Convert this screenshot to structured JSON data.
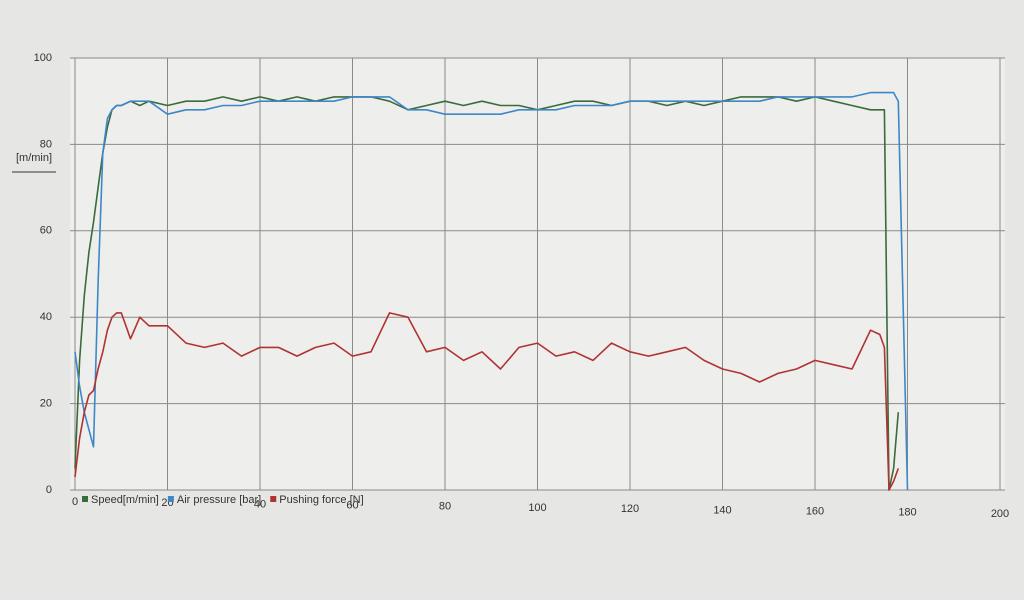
{
  "chart_data": {
    "type": "line",
    "ylabel": "[m/min]",
    "x": [
      0,
      1,
      2,
      3,
      4,
      5,
      6,
      7,
      8,
      9,
      10,
      12,
      14,
      16,
      20,
      24,
      28,
      32,
      36,
      40,
      44,
      48,
      52,
      56,
      60,
      64,
      68,
      72,
      76,
      80,
      84,
      88,
      92,
      96,
      100,
      104,
      108,
      112,
      116,
      120,
      124,
      128,
      132,
      136,
      140,
      144,
      148,
      152,
      156,
      160,
      164,
      168,
      172,
      174,
      175,
      176,
      177,
      178,
      180
    ],
    "series": [
      {
        "name": "Speed[m/min]",
        "color": "#3b6b3b",
        "values": [
          5,
          30,
          45,
          55,
          62,
          70,
          78,
          84,
          88,
          89,
          89,
          90,
          89,
          90,
          89,
          90,
          90,
          91,
          90,
          91,
          90,
          91,
          90,
          91,
          91,
          91,
          90,
          88,
          89,
          90,
          89,
          90,
          89,
          89,
          88,
          89,
          90,
          90,
          89,
          90,
          90,
          89,
          90,
          89,
          90,
          91,
          91,
          91,
          90,
          91,
          90,
          89,
          88,
          88,
          88,
          0,
          5,
          18,
          null
        ]
      },
      {
        "name": "Air pressure [bar]",
        "color": "#3f86c9",
        "values": [
          32,
          24,
          18,
          14,
          10,
          48,
          78,
          86,
          88,
          89,
          89,
          90,
          90,
          90,
          87,
          88,
          88,
          89,
          89,
          90,
          90,
          90,
          90,
          90,
          91,
          91,
          91,
          88,
          88,
          87,
          87,
          87,
          87,
          88,
          88,
          88,
          89,
          89,
          89,
          90,
          90,
          90,
          90,
          90,
          90,
          90,
          90,
          91,
          91,
          91,
          91,
          91,
          92,
          92,
          92,
          92,
          92,
          90,
          0
        ]
      },
      {
        "name": "Pushing force [N]",
        "color": "#b13232",
        "values": [
          3,
          12,
          18,
          22,
          23,
          28,
          32,
          37,
          40,
          41,
          41,
          35,
          40,
          38,
          38,
          34,
          33,
          34,
          31,
          33,
          33,
          31,
          33,
          34,
          31,
          32,
          41,
          40,
          32,
          33,
          30,
          32,
          28,
          33,
          34,
          31,
          32,
          30,
          34,
          32,
          31,
          32,
          33,
          30,
          28,
          27,
          25,
          27,
          28,
          30,
          29,
          28,
          37,
          36,
          33,
          0,
          2,
          5,
          null
        ]
      }
    ],
    "xlim": [
      0,
      200
    ],
    "xticks": [
      0,
      20,
      40,
      60,
      80,
      100,
      120,
      140,
      160,
      180,
      200
    ],
    "ylim": [
      0,
      100
    ],
    "yticks": [
      0,
      20,
      40,
      60,
      80,
      100
    ],
    "grid": true
  }
}
